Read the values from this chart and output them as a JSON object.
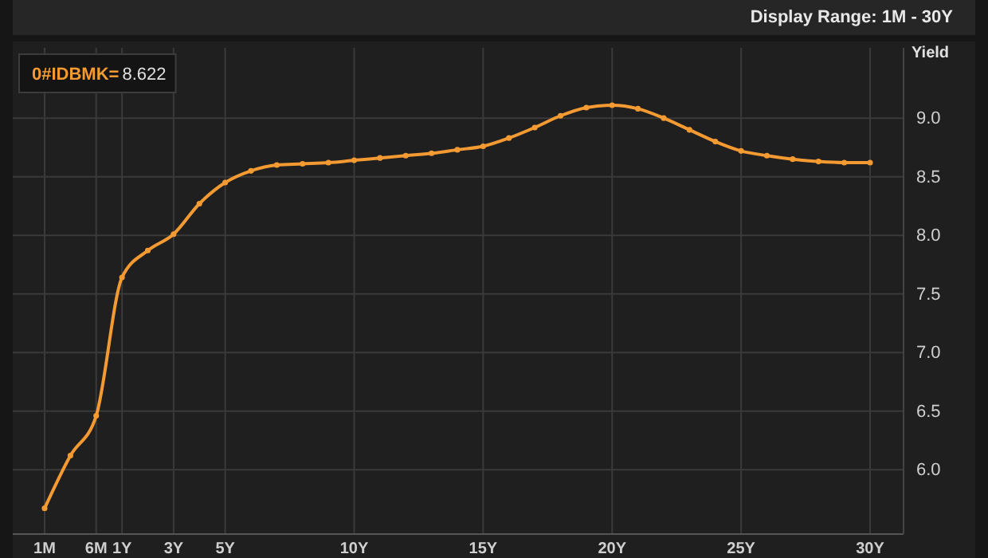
{
  "chart_data": {
    "type": "line",
    "subtitle": "Display Range: 1M - 30Y",
    "ylabel": "Yield",
    "annotations": [
      "8.622"
    ],
    "categories": [
      "1M",
      null,
      "6M",
      "1Y",
      null,
      "3Y",
      null,
      "5Y",
      null,
      null,
      null,
      null,
      "10Y",
      null,
      null,
      null,
      null,
      "15Y",
      null,
      null,
      null,
      null,
      "20Y",
      null,
      null,
      null,
      null,
      "25Y",
      null,
      null,
      null,
      null,
      "30Y"
    ],
    "series": [
      {
        "name": "0#IDBMK=",
        "color": "#f39a32",
        "values": [
          5.67,
          6.12,
          6.46,
          7.64,
          7.87,
          8.01,
          8.27,
          8.45,
          8.55,
          8.6,
          8.61,
          8.62,
          8.64,
          8.66,
          8.68,
          8.7,
          8.73,
          8.76,
          8.83,
          8.92,
          9.02,
          9.09,
          9.11,
          9.08,
          9,
          8.9,
          8.8,
          8.72,
          8.68,
          8.65,
          8.63,
          8.62,
          8.62
        ]
      }
    ],
    "ylim": [
      5.45,
      9.6
    ],
    "yticks": [
      {
        "value": 6,
        "label": "6.0"
      },
      {
        "value": 6.5,
        "label": "6.5"
      },
      {
        "value": 7,
        "label": "7.0"
      },
      {
        "value": 7.5,
        "label": "7.5"
      },
      {
        "value": 8,
        "label": "8.0"
      },
      {
        "value": 8.5,
        "label": "8.5"
      },
      {
        "value": 9,
        "label": "9.0"
      }
    ],
    "grid": true,
    "marker": "circle",
    "line_style": "solid"
  }
}
